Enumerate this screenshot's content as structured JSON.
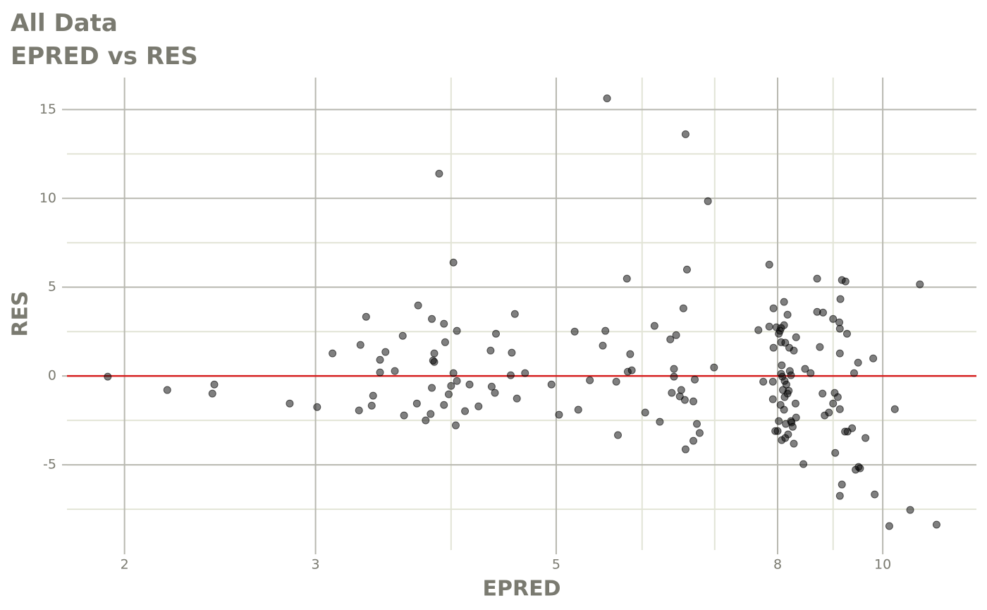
{
  "chart_data": {
    "type": "scatter",
    "title": "All Data",
    "subtitle": "EPRED vs RES",
    "x_label": "EPRED",
    "y_label": "RES",
    "xscale": "log",
    "grid": true,
    "color": "#000000",
    "hline": {
      "y": 0,
      "color": "#d62020"
    },
    "xlim": [
      1.77,
      12.2
    ],
    "ylim": [
      -9.8,
      16.8
    ],
    "xticks": [
      2,
      3,
      5,
      8,
      10
    ],
    "yticks": [
      -5,
      0,
      5,
      10,
      15
    ],
    "x_minor_grid": [
      4,
      6,
      7,
      9
    ],
    "y_minor_grid": [
      -7.5,
      -2.5,
      2.5,
      7.5,
      12.5
    ],
    "x": [
      1.93,
      2.19,
      2.41,
      2.42,
      2.84,
      3.01,
      3.11,
      3.29,
      3.3,
      3.34,
      3.38,
      3.39,
      3.44,
      3.44,
      3.48,
      3.55,
      3.61,
      3.62,
      3.72,
      3.73,
      3.79,
      3.83,
      3.84,
      3.84,
      3.85,
      3.86,
      3.86,
      3.9,
      3.94,
      3.94,
      3.95,
      3.98,
      4.0,
      4.02,
      4.02,
      4.04,
      4.05,
      4.05,
      4.12,
      4.16,
      4.24,
      4.35,
      4.36,
      4.39,
      4.4,
      4.54,
      4.55,
      4.58,
      4.6,
      4.68,
      4.95,
      5.03,
      5.2,
      5.24,
      5.37,
      5.52,
      5.55,
      5.57,
      5.68,
      5.7,
      5.81,
      5.82,
      5.85,
      5.87,
      6.04,
      6.16,
      6.23,
      6.37,
      6.39,
      6.42,
      6.42,
      6.45,
      6.5,
      6.52,
      6.55,
      6.57,
      6.58,
      6.58,
      6.6,
      6.69,
      6.69,
      6.71,
      6.74,
      6.78,
      6.9,
      6.99,
      7.68,
      7.76,
      7.86,
      7.86,
      7.92,
      7.92,
      7.93,
      7.93,
      7.96,
      7.98,
      8.0,
      8.02,
      8.02,
      8.04,
      8.05,
      8.06,
      8.06,
      8.06,
      8.07,
      8.07,
      8.08,
      8.09,
      8.11,
      8.11,
      8.11,
      8.12,
      8.12,
      8.13,
      8.13,
      8.14,
      8.15,
      8.17,
      8.17,
      8.18,
      8.19,
      8.2,
      8.21,
      8.23,
      8.23,
      8.24,
      8.26,
      8.28,
      8.28,
      8.31,
      8.32,
      8.32,
      8.45,
      8.48,
      8.58,
      8.7,
      8.7,
      8.75,
      8.8,
      8.81,
      8.84,
      8.92,
      9.0,
      9.0,
      9.03,
      9.04,
      9.09,
      9.12,
      9.13,
      9.13,
      9.13,
      9.13,
      9.14,
      9.17,
      9.17,
      9.23,
      9.24,
      9.27,
      9.28,
      9.37,
      9.41,
      9.44,
      9.49,
      9.5,
      9.53,
      9.64,
      9.8,
      9.83,
      10.14,
      10.26,
      10.6,
      10.82,
      11.21
    ],
    "values": [
      -0.04,
      -0.79,
      -0.99,
      -0.48,
      -1.55,
      -1.75,
      1.27,
      -1.94,
      1.75,
      3.33,
      -1.67,
      -1.11,
      0.91,
      0.2,
      1.35,
      0.28,
      2.26,
      -2.22,
      -1.55,
      3.97,
      -2.5,
      -2.14,
      -0.67,
      3.21,
      0.87,
      0.79,
      1.27,
      11.39,
      -1.63,
      2.94,
      1.9,
      -1.03,
      -0.56,
      6.39,
      0.16,
      -2.78,
      -0.28,
      2.54,
      -1.98,
      -0.48,
      -1.71,
      1.43,
      -0.6,
      -0.95,
      2.38,
      0.04,
      1.31,
      3.49,
      -1.27,
      0.16,
      -0.48,
      -2.18,
      2.5,
      -1.9,
      -0.24,
      1.71,
      2.54,
      15.63,
      -0.32,
      -3.33,
      5.48,
      0.24,
      1.23,
      0.32,
      -2.06,
      2.82,
      -2.58,
      2.06,
      -0.95,
      0.4,
      -0.04,
      2.3,
      -1.15,
      -0.79,
      3.81,
      -1.35,
      13.61,
      -4.13,
      5.99,
      -1.43,
      -3.65,
      -0.2,
      -2.7,
      -3.21,
      9.84,
      0.48,
      2.58,
      -0.32,
      6.27,
      2.78,
      -0.32,
      -1.31,
      3.81,
      1.59,
      -3.1,
      2.74,
      -3.1,
      -2.54,
      2.38,
      2.54,
      -1.63,
      2.7,
      0.12,
      1.9,
      0.6,
      -3.61,
      -0.04,
      -0.79,
      4.17,
      2.86,
      -1.9,
      -0.28,
      -1.19,
      1.87,
      -3.49,
      -2.7,
      -0.48,
      -0.99,
      3.45,
      -3.29,
      -0.83,
      1.59,
      0.28,
      0.04,
      -2.54,
      -2.62,
      -2.86,
      1.43,
      -3.81,
      -1.55,
      2.18,
      -2.34,
      -4.96,
      0.4,
      0.16,
      3.61,
      5.48,
      1.63,
      -0.99,
      3.57,
      -2.22,
      -2.06,
      3.21,
      -1.55,
      -0.95,
      -4.33,
      -1.19,
      3.02,
      -1.87,
      2.66,
      -6.75,
      1.27,
      4.33,
      5.4,
      -6.11,
      -3.13,
      5.32,
      2.38,
      -3.13,
      -2.94,
      0.16,
      -5.28,
      0.75,
      -5.12,
      -5.2,
      -3.49,
      0.99,
      -6.67,
      -8.45,
      -1.87,
      -7.54,
      5.16,
      -8.37
    ]
  }
}
